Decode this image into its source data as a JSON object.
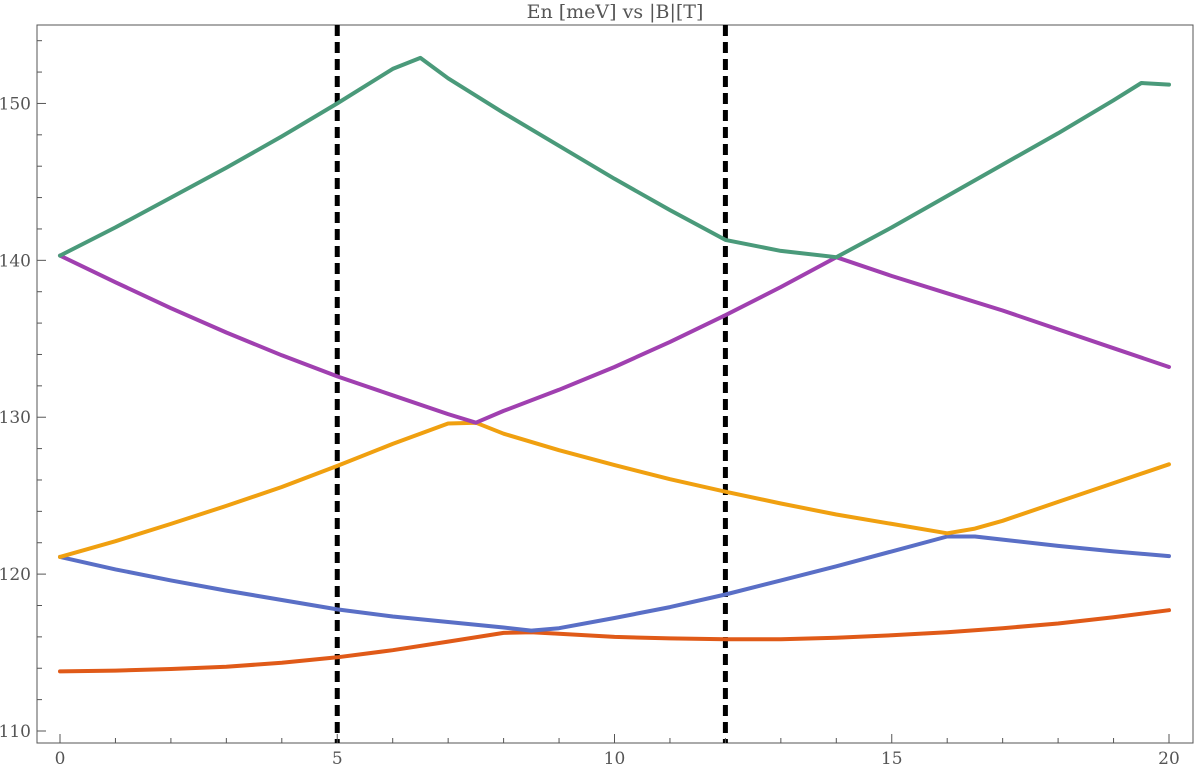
{
  "chart_data": {
    "type": "line",
    "title": "En [meV] vs |B|[T]",
    "xlabel": "",
    "ylabel": "",
    "xlim": [
      0,
      20
    ],
    "ylim": [
      110,
      155
    ],
    "xticks": [
      0,
      5,
      10,
      15,
      20
    ],
    "yticks": [
      110,
      120,
      130,
      140,
      150
    ],
    "grid": false,
    "vlines": [
      5,
      12
    ],
    "series": [
      {
        "color": "#e05a18",
        "points": [
          [
            0,
            113.8
          ],
          [
            1,
            113.85
          ],
          [
            2,
            113.95
          ],
          [
            3,
            114.1
          ],
          [
            4,
            114.35
          ],
          [
            5,
            114.7
          ],
          [
            6,
            115.15
          ],
          [
            7,
            115.7
          ],
          [
            8,
            116.25
          ],
          [
            8.5,
            116.3
          ],
          [
            9,
            116.2
          ],
          [
            10,
            116.0
          ],
          [
            11,
            115.9
          ],
          [
            12,
            115.85
          ],
          [
            13,
            115.85
          ],
          [
            14,
            115.95
          ],
          [
            15,
            116.1
          ],
          [
            16,
            116.3
          ],
          [
            17,
            116.55
          ],
          [
            18,
            116.85
          ],
          [
            19,
            117.25
          ],
          [
            20,
            117.7
          ]
        ]
      },
      {
        "color": "#5a6fc6",
        "points": [
          [
            0,
            121.1
          ],
          [
            1,
            120.3
          ],
          [
            2,
            119.6
          ],
          [
            3,
            118.95
          ],
          [
            4,
            118.35
          ],
          [
            5,
            117.75
          ],
          [
            6,
            117.3
          ],
          [
            7,
            116.95
          ],
          [
            8,
            116.6
          ],
          [
            8.5,
            116.4
          ],
          [
            9,
            116.55
          ],
          [
            10,
            117.2
          ],
          [
            11,
            117.9
          ],
          [
            12,
            118.7
          ],
          [
            13,
            119.6
          ],
          [
            14,
            120.5
          ],
          [
            15,
            121.45
          ],
          [
            16,
            122.4
          ],
          [
            16.5,
            122.4
          ],
          [
            17,
            122.2
          ],
          [
            18,
            121.8
          ],
          [
            19,
            121.45
          ],
          [
            20,
            121.15
          ]
        ]
      },
      {
        "color": "#f0a010",
        "points": [
          [
            0,
            121.1
          ],
          [
            1,
            122.1
          ],
          [
            2,
            123.2
          ],
          [
            3,
            124.35
          ],
          [
            4,
            125.55
          ],
          [
            5,
            126.9
          ],
          [
            6,
            128.3
          ],
          [
            7,
            129.6
          ],
          [
            7.5,
            129.65
          ],
          [
            8,
            128.95
          ],
          [
            9,
            127.9
          ],
          [
            10,
            126.95
          ],
          [
            11,
            126.05
          ],
          [
            12,
            125.25
          ],
          [
            13,
            124.5
          ],
          [
            14,
            123.8
          ],
          [
            15,
            123.2
          ],
          [
            16,
            122.6
          ],
          [
            16.5,
            122.9
          ],
          [
            17,
            123.4
          ],
          [
            18,
            124.6
          ],
          [
            19,
            125.8
          ],
          [
            20,
            127.0
          ]
        ]
      },
      {
        "color": "#a040b0",
        "points": [
          [
            0,
            140.3
          ],
          [
            1,
            138.6
          ],
          [
            2,
            136.95
          ],
          [
            3,
            135.4
          ],
          [
            4,
            133.95
          ],
          [
            5,
            132.6
          ],
          [
            6,
            131.4
          ],
          [
            7,
            130.2
          ],
          [
            7.5,
            129.65
          ],
          [
            8,
            130.4
          ],
          [
            9,
            131.75
          ],
          [
            10,
            133.2
          ],
          [
            11,
            134.8
          ],
          [
            12,
            136.5
          ],
          [
            13,
            138.3
          ],
          [
            14,
            140.2
          ],
          [
            15,
            139.0
          ],
          [
            16,
            137.9
          ],
          [
            17,
            136.8
          ],
          [
            18,
            135.6
          ],
          [
            19,
            134.4
          ],
          [
            20,
            133.2
          ]
        ]
      },
      {
        "color": "#4a9a7a",
        "points": [
          [
            0,
            140.3
          ],
          [
            1,
            142.1
          ],
          [
            2,
            144.0
          ],
          [
            3,
            145.9
          ],
          [
            4,
            147.9
          ],
          [
            5,
            150.0
          ],
          [
            6,
            152.2
          ],
          [
            6.5,
            152.9
          ],
          [
            7,
            151.6
          ],
          [
            8,
            149.4
          ],
          [
            9,
            147.3
          ],
          [
            10,
            145.2
          ],
          [
            11,
            143.2
          ],
          [
            12,
            141.3
          ],
          [
            13,
            140.6
          ],
          [
            14,
            140.2
          ],
          [
            15,
            142.1
          ],
          [
            16,
            144.1
          ],
          [
            17,
            146.1
          ],
          [
            18,
            148.1
          ],
          [
            19,
            150.2
          ],
          [
            19.5,
            151.3
          ],
          [
            20,
            151.2
          ]
        ]
      }
    ]
  }
}
